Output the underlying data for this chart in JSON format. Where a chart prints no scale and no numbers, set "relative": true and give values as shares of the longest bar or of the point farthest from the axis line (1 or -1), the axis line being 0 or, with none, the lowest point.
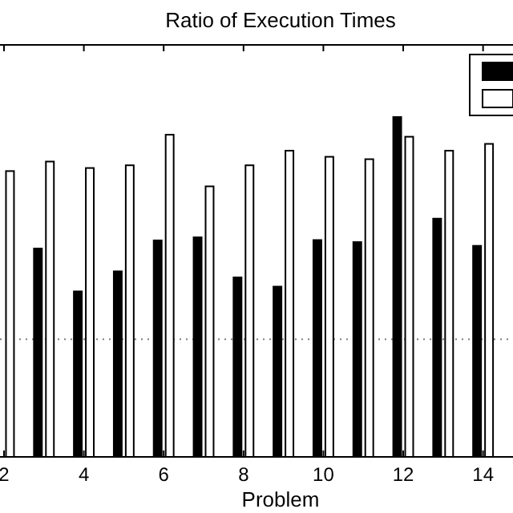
{
  "chart_data": {
    "type": "bar",
    "title": "Ratio of Execution Times",
    "xlabel": "Problem",
    "relative": true,
    "x": [
      2,
      3,
      4,
      5,
      6,
      7,
      8,
      9,
      10,
      11,
      12,
      13,
      14
    ],
    "xlim": [
      1.9,
      14.75
    ],
    "xticks": [
      2,
      4,
      6,
      8,
      10,
      12,
      14
    ],
    "series": [
      {
        "color": "#000000",
        "values": [
          null,
          0.613,
          0.487,
          0.546,
          0.637,
          0.646,
          0.528,
          0.501,
          0.638,
          0.632,
          1,
          0.701,
          0.621
        ]
      },
      {
        "color": "#ffffff",
        "values": [
          0.841,
          0.869,
          0.85,
          0.858,
          0.948,
          0.796,
          0.858,
          0.901,
          0.883,
          0.876,
          0.942,
          0.901,
          0.921
        ]
      }
    ],
    "ref_lines": [
      {
        "axis": "y",
        "value": 0.346,
        "color": "#808080",
        "line_style": "dotted"
      }
    ]
  }
}
